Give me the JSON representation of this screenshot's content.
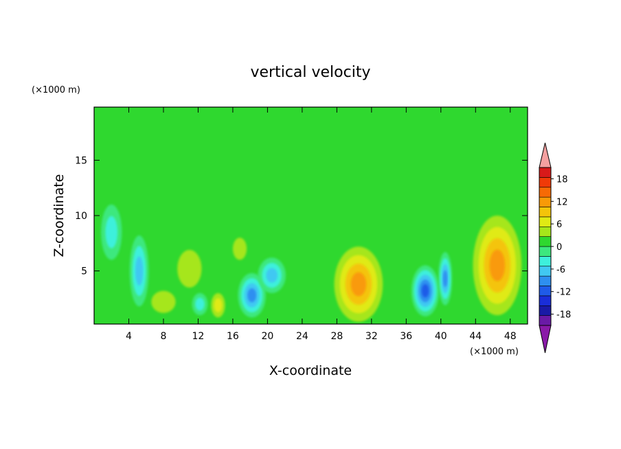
{
  "chart_data": {
    "type": "heatmap",
    "title": "vertical velocity",
    "xlabel": "X-coordinate",
    "ylabel": "Z-coordinate",
    "x_unit": "(×1000 m)",
    "y_unit": "(×1000 m)",
    "xlim": [
      0,
      50
    ],
    "ylim": [
      0.2,
      19.8
    ],
    "x_ticks": [
      4,
      8,
      12,
      16,
      20,
      24,
      28,
      32,
      36,
      40,
      44,
      48
    ],
    "y_ticks": [
      5,
      10,
      15
    ],
    "background_level": 0,
    "colorbar": {
      "levels": [
        -21,
        -18,
        -15,
        -12,
        -9,
        -6,
        -3,
        0,
        3,
        6,
        9,
        12,
        15,
        18,
        21
      ],
      "tick_labels": [
        "18",
        "12",
        "6",
        "0",
        "-6",
        "-12",
        "-18"
      ],
      "tick_values": [
        18,
        12,
        6,
        0,
        -6,
        -12,
        -18
      ],
      "colors": [
        "#6a1aa6",
        "#1a1aa6",
        "#1a2ed8",
        "#1f5be8",
        "#2e8ff0",
        "#41c8f2",
        "#3ef0dc",
        "#3de87e",
        "#2fd82f",
        "#a6e61a",
        "#e0ea14",
        "#f4c40a",
        "#f99a07",
        "#f76a05",
        "#f03a08",
        "#d81a1a"
      ],
      "under_color": "#8a1aa8",
      "over_color": "#f4a0a0"
    },
    "features": [
      {
        "x": 46.5,
        "z": 5.5,
        "rx": 2.8,
        "rz": 4.5,
        "value": 14
      },
      {
        "x": 30.5,
        "z": 3.8,
        "rx": 2.8,
        "rz": 3.4,
        "value": 12
      },
      {
        "x": 38.2,
        "z": 3.2,
        "rx": 1.6,
        "rz": 2.3,
        "value": -15
      },
      {
        "x": 40.5,
        "z": 4.3,
        "rx": 0.8,
        "rz": 2.4,
        "value": -12
      },
      {
        "x": 18.2,
        "z": 2.8,
        "rx": 1.6,
        "rz": 2.0,
        "value": -12
      },
      {
        "x": 20.5,
        "z": 4.6,
        "rx": 1.6,
        "rz": 1.6,
        "value": -7
      },
      {
        "x": 5.2,
        "z": 5.0,
        "rx": 1.1,
        "rz": 3.2,
        "value": -8
      },
      {
        "x": 2.0,
        "z": 8.5,
        "rx": 1.2,
        "rz": 2.5,
        "value": -4
      },
      {
        "x": 11.0,
        "z": 5.2,
        "rx": 1.4,
        "rz": 1.7,
        "value": 4
      },
      {
        "x": 8.0,
        "z": 2.2,
        "rx": 1.4,
        "rz": 1.0,
        "value": 4
      },
      {
        "x": 14.3,
        "z": 1.9,
        "rx": 0.8,
        "rz": 1.1,
        "value": 6
      },
      {
        "x": 16.8,
        "z": 7.0,
        "rx": 0.8,
        "rz": 1.0,
        "value": 3
      },
      {
        "x": 12.2,
        "z": 2.0,
        "rx": 0.9,
        "rz": 1.0,
        "value": -4
      }
    ]
  }
}
